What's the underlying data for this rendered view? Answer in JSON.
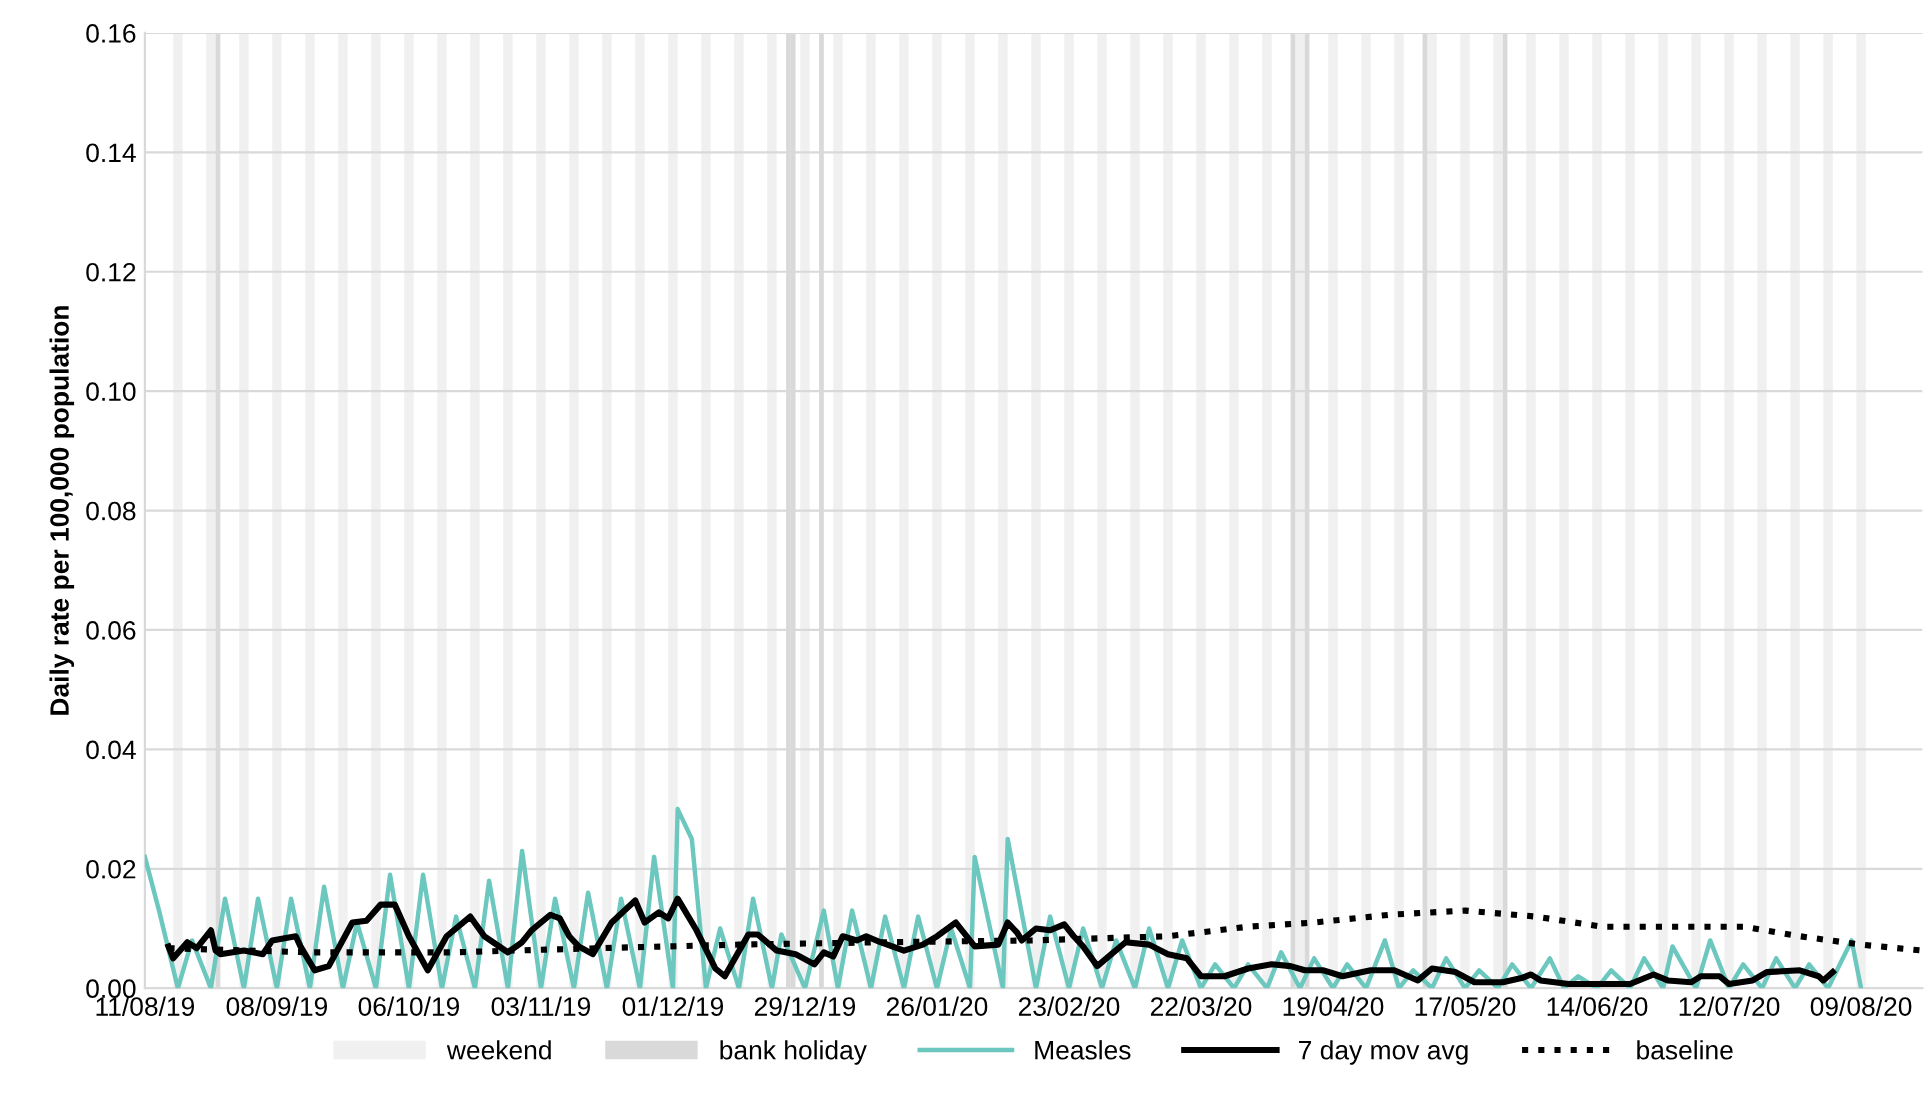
{
  "chart_data": {
    "type": "line",
    "ylabel": "Daily rate per 100,000 population",
    "xlim": [
      "2019-08-11",
      "2020-08-22"
    ],
    "xticks": [
      {
        "value": "2019-08-11",
        "label": "11/08/19"
      },
      {
        "value": "2019-09-08",
        "label": "08/09/19"
      },
      {
        "value": "2019-10-06",
        "label": "06/10/19"
      },
      {
        "value": "2019-11-03",
        "label": "03/11/19"
      },
      {
        "value": "2019-12-01",
        "label": "01/12/19"
      },
      {
        "value": "2019-12-29",
        "label": "29/12/19"
      },
      {
        "value": "2020-01-26",
        "label": "26/01/20"
      },
      {
        "value": "2020-02-23",
        "label": "23/02/20"
      },
      {
        "value": "2020-03-22",
        "label": "22/03/20"
      },
      {
        "value": "2020-04-19",
        "label": "19/04/20"
      },
      {
        "value": "2020-05-17",
        "label": "17/05/20"
      },
      {
        "value": "2020-06-14",
        "label": "14/06/20"
      },
      {
        "value": "2020-07-12",
        "label": "12/07/20"
      },
      {
        "value": "2020-08-09",
        "label": "09/08/20"
      }
    ],
    "ylim": [
      0,
      0.16
    ],
    "yticks": [
      {
        "value": 0,
        "label": "0.00"
      },
      {
        "value": 0.02,
        "label": "0.02"
      },
      {
        "value": 0.04,
        "label": "0.04"
      },
      {
        "value": 0.06,
        "label": "0.06"
      },
      {
        "value": 0.08,
        "label": "0.08"
      },
      {
        "value": 0.1,
        "label": "0.10"
      },
      {
        "value": 0.12,
        "label": "0.12"
      },
      {
        "value": 0.14,
        "label": "0.14"
      },
      {
        "value": 0.16,
        "label": "0.16"
      }
    ],
    "grid": "y",
    "legend": "bottom",
    "series": [
      {
        "name": "Measles",
        "color": "#6cc8be",
        "line_style": "solid",
        "x": [
          "2019-08-11",
          "2019-08-14",
          "2019-08-18",
          "2019-08-21",
          "2019-08-25",
          "2019-08-28",
          "2019-09-01",
          "2019-09-04",
          "2019-09-08",
          "2019-09-11",
          "2019-09-15",
          "2019-09-18",
          "2019-09-22",
          "2019-09-25",
          "2019-09-29",
          "2019-10-02",
          "2019-10-06",
          "2019-10-09",
          "2019-10-13",
          "2019-10-16",
          "2019-10-20",
          "2019-10-23",
          "2019-10-27",
          "2019-10-30",
          "2019-11-03",
          "2019-11-06",
          "2019-11-10",
          "2019-11-13",
          "2019-11-17",
          "2019-11-20",
          "2019-11-24",
          "2019-11-27",
          "2019-12-01",
          "2019-12-02",
          "2019-12-05",
          "2019-12-08",
          "2019-12-11",
          "2019-12-15",
          "2019-12-18",
          "2019-12-22",
          "2019-12-24",
          "2019-12-29",
          "2020-01-02",
          "2020-01-05",
          "2020-01-08",
          "2020-01-12",
          "2020-01-15",
          "2020-01-19",
          "2020-01-22",
          "2020-01-26",
          "2020-01-29",
          "2020-02-02",
          "2020-02-03",
          "2020-02-09",
          "2020-02-10",
          "2020-02-16",
          "2020-02-19",
          "2020-02-23",
          "2020-02-26",
          "2020-03-01",
          "2020-03-04",
          "2020-03-08",
          "2020-03-11",
          "2020-03-15",
          "2020-03-18",
          "2020-03-22",
          "2020-03-25",
          "2020-03-29",
          "2020-04-01",
          "2020-04-05",
          "2020-04-08",
          "2020-04-12",
          "2020-04-15",
          "2020-04-19",
          "2020-04-22",
          "2020-04-26",
          "2020-04-30",
          "2020-05-03",
          "2020-05-06",
          "2020-05-10",
          "2020-05-13",
          "2020-05-17",
          "2020-05-20",
          "2020-05-24",
          "2020-05-27",
          "2020-05-31",
          "2020-06-04",
          "2020-06-07",
          "2020-06-10",
          "2020-06-14",
          "2020-06-17",
          "2020-06-21",
          "2020-06-24",
          "2020-06-28",
          "2020-06-30",
          "2020-07-05",
          "2020-07-08",
          "2020-07-12",
          "2020-07-15",
          "2020-07-19",
          "2020-07-22",
          "2020-07-26",
          "2020-07-29",
          "2020-08-02",
          "2020-08-07",
          "2020-08-09"
        ],
        "values": [
          0.022,
          0.013,
          0,
          0.008,
          0,
          0.015,
          0,
          0.015,
          0,
          0.015,
          0,
          0.017,
          0,
          0.011,
          0,
          0.019,
          0,
          0.019,
          0,
          0.012,
          0,
          0.018,
          0,
          0.023,
          0,
          0.015,
          0,
          0.016,
          0,
          0.015,
          0,
          0.022,
          0,
          0.03,
          0.025,
          0,
          0.01,
          0,
          0.015,
          0,
          0.009,
          0,
          0.013,
          0,
          0.013,
          0,
          0.012,
          0,
          0.012,
          0,
          0.01,
          0,
          0.022,
          0,
          0.025,
          0,
          0.012,
          0,
          0.01,
          0,
          0.008,
          0,
          0.01,
          0,
          0.008,
          0,
          0.004,
          0,
          0.004,
          0,
          0.006,
          0,
          0.005,
          0,
          0.004,
          0,
          0.008,
          0,
          0.003,
          0,
          0.005,
          0,
          0.003,
          0,
          0.004,
          0,
          0.005,
          0,
          0.002,
          0,
          0.003,
          0,
          0.005,
          0,
          0.007,
          0,
          0.008,
          0,
          0.004,
          0,
          0.005,
          0,
          0.004,
          0,
          0.008,
          0
        ]
      },
      {
        "name": "7 day mov avg",
        "color": "#000000",
        "line_style": "solid",
        "x": [
          "2019-08-16",
          "2019-08-17",
          "2019-08-20",
          "2019-08-22",
          "2019-08-25",
          "2019-08-26",
          "2019-08-27",
          "2019-09-01",
          "2019-09-05",
          "2019-09-07",
          "2019-09-12",
          "2019-09-13",
          "2019-09-16",
          "2019-09-19",
          "2019-09-24",
          "2019-09-27",
          "2019-09-30",
          "2019-10-03",
          "2019-10-06",
          "2019-10-10",
          "2019-10-14",
          "2019-10-19",
          "2019-10-22",
          "2019-10-27",
          "2019-10-30",
          "2019-11-01",
          "2019-11-05",
          "2019-11-07",
          "2019-11-09",
          "2019-11-11",
          "2019-11-14",
          "2019-11-18",
          "2019-11-23",
          "2019-11-25",
          "2019-11-28",
          "2019-11-30",
          "2019-12-02",
          "2019-12-06",
          "2019-12-10",
          "2019-12-12",
          "2019-12-17",
          "2019-12-19",
          "2019-12-23",
          "2019-12-27",
          "2019-12-31",
          "2020-01-02",
          "2020-01-04",
          "2020-01-06",
          "2020-01-09",
          "2020-01-11",
          "2020-01-14",
          "2020-01-19",
          "2020-01-23",
          "2020-01-26",
          "2020-01-30",
          "2020-02-03",
          "2020-02-08",
          "2020-02-10",
          "2020-02-12",
          "2020-02-13",
          "2020-02-16",
          "2020-02-19",
          "2020-02-22",
          "2020-02-24",
          "2020-02-26",
          "2020-02-29",
          "2020-03-03",
          "2020-03-06",
          "2020-03-11",
          "2020-03-15",
          "2020-03-19",
          "2020-03-22",
          "2020-03-27",
          "2020-04-01",
          "2020-04-06",
          "2020-04-10",
          "2020-04-13",
          "2020-04-17",
          "2020-04-21",
          "2020-04-27",
          "2020-05-02",
          "2020-05-07",
          "2020-05-10",
          "2020-05-15",
          "2020-05-19",
          "2020-05-25",
          "2020-05-29",
          "2020-05-31",
          "2020-06-02",
          "2020-06-08",
          "2020-06-14",
          "2020-06-21",
          "2020-06-26",
          "2020-06-29",
          "2020-07-04",
          "2020-07-06",
          "2020-07-10",
          "2020-07-12",
          "2020-07-17",
          "2020-07-20",
          "2020-07-27",
          "2020-07-31",
          "2020-08-01",
          "2020-08-03"
        ],
        "values": [
          0.007,
          0.005,
          0.0077,
          0.0067,
          0.0097,
          0.0063,
          0.0057,
          0.0063,
          0.0057,
          0.008,
          0.0087,
          0.007,
          0.003,
          0.0037,
          0.011,
          0.0113,
          0.014,
          0.014,
          0.0087,
          0.003,
          0.0087,
          0.012,
          0.0087,
          0.006,
          0.0077,
          0.0097,
          0.0123,
          0.0117,
          0.0087,
          0.007,
          0.0057,
          0.011,
          0.0147,
          0.011,
          0.0127,
          0.0117,
          0.015,
          0.0097,
          0.0033,
          0.002,
          0.009,
          0.009,
          0.0063,
          0.0057,
          0.004,
          0.006,
          0.0053,
          0.0087,
          0.008,
          0.0087,
          0.0077,
          0.0063,
          0.0073,
          0.0087,
          0.011,
          0.007,
          0.0073,
          0.011,
          0.0093,
          0.008,
          0.01,
          0.0097,
          0.0107,
          0.0087,
          0.007,
          0.0037,
          0.0057,
          0.0077,
          0.0073,
          0.0057,
          0.005,
          0.002,
          0.002,
          0.0033,
          0.004,
          0.0037,
          0.003,
          0.003,
          0.002,
          0.003,
          0.003,
          0.0013,
          0.0033,
          0.0027,
          0.001,
          0.001,
          0.0017,
          0.0023,
          0.0013,
          0.0007,
          0.0007,
          0.0007,
          0.0023,
          0.0013,
          0.001,
          0.002,
          0.002,
          0.0007,
          0.0013,
          0.0027,
          0.003,
          0.002,
          0.0013,
          0.0027
        ]
      },
      {
        "name": "baseline",
        "color": "#000000",
        "line_style": "dotted",
        "x": [
          "2019-08-16",
          "2019-09-15",
          "2019-10-15",
          "2019-11-15",
          "2019-12-15",
          "2020-01-15",
          "2020-02-15",
          "2020-03-15",
          "2020-04-01",
          "2020-04-15",
          "2020-05-01",
          "2020-05-17",
          "2020-06-01",
          "2020-06-15",
          "2020-07-01",
          "2020-07-15",
          "2020-07-27",
          "2020-08-09",
          "2020-08-22"
        ],
        "values": [
          0.0067,
          0.006,
          0.006,
          0.0067,
          0.0073,
          0.0077,
          0.008,
          0.0087,
          0.0103,
          0.011,
          0.0123,
          0.013,
          0.012,
          0.0103,
          0.0103,
          0.0103,
          0.0087,
          0.0073,
          0.0063
        ]
      }
    ],
    "bands": [
      {
        "axis": "x",
        "from": "2019-08-17",
        "to": "2019-08-19",
        "label": "weekend",
        "color": "#f0f0f0"
      },
      {
        "axis": "x",
        "from": "2019-08-24",
        "to": "2019-08-26",
        "color": "#f0f0f0"
      },
      {
        "axis": "x",
        "from": "2019-08-31",
        "to": "2019-09-02",
        "color": "#f0f0f0"
      },
      {
        "axis": "x",
        "from": "2019-09-07",
        "to": "2019-09-09",
        "color": "#f0f0f0"
      },
      {
        "axis": "x",
        "from": "2019-09-14",
        "to": "2019-09-16",
        "color": "#f0f0f0"
      },
      {
        "axis": "x",
        "from": "2019-09-21",
        "to": "2019-09-23",
        "color": "#f0f0f0"
      },
      {
        "axis": "x",
        "from": "2019-09-28",
        "to": "2019-09-30",
        "color": "#f0f0f0"
      },
      {
        "axis": "x",
        "from": "2019-10-05",
        "to": "2019-10-07",
        "color": "#f0f0f0"
      },
      {
        "axis": "x",
        "from": "2019-10-12",
        "to": "2019-10-14",
        "color": "#f0f0f0"
      },
      {
        "axis": "x",
        "from": "2019-10-19",
        "to": "2019-10-21",
        "color": "#f0f0f0"
      },
      {
        "axis": "x",
        "from": "2019-10-26",
        "to": "2019-10-28",
        "color": "#f0f0f0"
      },
      {
        "axis": "x",
        "from": "2019-11-02",
        "to": "2019-11-04",
        "color": "#f0f0f0"
      },
      {
        "axis": "x",
        "from": "2019-11-09",
        "to": "2019-11-11",
        "color": "#f0f0f0"
      },
      {
        "axis": "x",
        "from": "2019-11-16",
        "to": "2019-11-18",
        "color": "#f0f0f0"
      },
      {
        "axis": "x",
        "from": "2019-11-23",
        "to": "2019-11-25",
        "color": "#f0f0f0"
      },
      {
        "axis": "x",
        "from": "2019-11-30",
        "to": "2019-12-02",
        "color": "#f0f0f0"
      },
      {
        "axis": "x",
        "from": "2019-12-07",
        "to": "2019-12-09",
        "color": "#f0f0f0"
      },
      {
        "axis": "x",
        "from": "2019-12-14",
        "to": "2019-12-16",
        "color": "#f0f0f0"
      },
      {
        "axis": "x",
        "from": "2019-12-21",
        "to": "2019-12-23",
        "color": "#f0f0f0"
      },
      {
        "axis": "x",
        "from": "2019-12-28",
        "to": "2019-12-30",
        "color": "#f0f0f0"
      },
      {
        "axis": "x",
        "from": "2020-01-04",
        "to": "2020-01-06",
        "color": "#f0f0f0"
      },
      {
        "axis": "x",
        "from": "2020-01-11",
        "to": "2020-01-13",
        "color": "#f0f0f0"
      },
      {
        "axis": "x",
        "from": "2020-01-18",
        "to": "2020-01-20",
        "color": "#f0f0f0"
      },
      {
        "axis": "x",
        "from": "2020-01-25",
        "to": "2020-01-27",
        "color": "#f0f0f0"
      },
      {
        "axis": "x",
        "from": "2020-02-01",
        "to": "2020-02-03",
        "color": "#f0f0f0"
      },
      {
        "axis": "x",
        "from": "2020-02-08",
        "to": "2020-02-10",
        "color": "#f0f0f0"
      },
      {
        "axis": "x",
        "from": "2020-02-15",
        "to": "2020-02-17",
        "color": "#f0f0f0"
      },
      {
        "axis": "x",
        "from": "2020-02-22",
        "to": "2020-02-24",
        "color": "#f0f0f0"
      },
      {
        "axis": "x",
        "from": "2020-02-29",
        "to": "2020-03-02",
        "color": "#f0f0f0"
      },
      {
        "axis": "x",
        "from": "2020-03-07",
        "to": "2020-03-09",
        "color": "#f0f0f0"
      },
      {
        "axis": "x",
        "from": "2020-03-14",
        "to": "2020-03-16",
        "color": "#f0f0f0"
      },
      {
        "axis": "x",
        "from": "2020-03-21",
        "to": "2020-03-23",
        "color": "#f0f0f0"
      },
      {
        "axis": "x",
        "from": "2020-03-28",
        "to": "2020-03-30",
        "color": "#f0f0f0"
      },
      {
        "axis": "x",
        "from": "2020-04-04",
        "to": "2020-04-06",
        "color": "#f0f0f0"
      },
      {
        "axis": "x",
        "from": "2020-04-11",
        "to": "2020-04-13",
        "color": "#f0f0f0"
      },
      {
        "axis": "x",
        "from": "2020-04-18",
        "to": "2020-04-20",
        "color": "#f0f0f0"
      },
      {
        "axis": "x",
        "from": "2020-04-25",
        "to": "2020-04-27",
        "color": "#f0f0f0"
      },
      {
        "axis": "x",
        "from": "2020-05-02",
        "to": "2020-05-04",
        "color": "#f0f0f0"
      },
      {
        "axis": "x",
        "from": "2020-05-09",
        "to": "2020-05-11",
        "color": "#f0f0f0"
      },
      {
        "axis": "x",
        "from": "2020-05-16",
        "to": "2020-05-18",
        "color": "#f0f0f0"
      },
      {
        "axis": "x",
        "from": "2020-05-23",
        "to": "2020-05-25",
        "color": "#f0f0f0"
      },
      {
        "axis": "x",
        "from": "2020-05-30",
        "to": "2020-06-01",
        "color": "#f0f0f0"
      },
      {
        "axis": "x",
        "from": "2020-06-06",
        "to": "2020-06-08",
        "color": "#f0f0f0"
      },
      {
        "axis": "x",
        "from": "2020-06-13",
        "to": "2020-06-15",
        "color": "#f0f0f0"
      },
      {
        "axis": "x",
        "from": "2020-06-20",
        "to": "2020-06-22",
        "color": "#f0f0f0"
      },
      {
        "axis": "x",
        "from": "2020-06-27",
        "to": "2020-06-29",
        "color": "#f0f0f0"
      },
      {
        "axis": "x",
        "from": "2020-07-04",
        "to": "2020-07-06",
        "color": "#f0f0f0"
      },
      {
        "axis": "x",
        "from": "2020-07-11",
        "to": "2020-07-13",
        "color": "#f0f0f0"
      },
      {
        "axis": "x",
        "from": "2020-07-18",
        "to": "2020-07-20",
        "color": "#f0f0f0"
      },
      {
        "axis": "x",
        "from": "2020-07-25",
        "to": "2020-07-27",
        "color": "#f0f0f0"
      },
      {
        "axis": "x",
        "from": "2020-08-01",
        "to": "2020-08-03",
        "color": "#f0f0f0"
      },
      {
        "axis": "x",
        "from": "2020-08-08",
        "to": "2020-08-10",
        "color": "#f0f0f0"
      },
      {
        "axis": "x",
        "from": "2019-08-26",
        "to": "2019-08-27",
        "label": "bank holiday",
        "color": "#d9d9d9"
      },
      {
        "axis": "x",
        "from": "2019-12-25",
        "to": "2019-12-26",
        "color": "#d9d9d9"
      },
      {
        "axis": "x",
        "from": "2019-12-26",
        "to": "2019-12-27",
        "color": "#d9d9d9"
      },
      {
        "axis": "x",
        "from": "2020-01-01",
        "to": "2020-01-02",
        "color": "#d9d9d9"
      },
      {
        "axis": "x",
        "from": "2020-04-10",
        "to": "2020-04-11",
        "color": "#d9d9d9"
      },
      {
        "axis": "x",
        "from": "2020-04-13",
        "to": "2020-04-14",
        "color": "#d9d9d9"
      },
      {
        "axis": "x",
        "from": "2020-05-08",
        "to": "2020-05-09",
        "color": "#d9d9d9"
      },
      {
        "axis": "x",
        "from": "2020-05-25",
        "to": "2020-05-26",
        "color": "#d9d9d9"
      }
    ]
  }
}
